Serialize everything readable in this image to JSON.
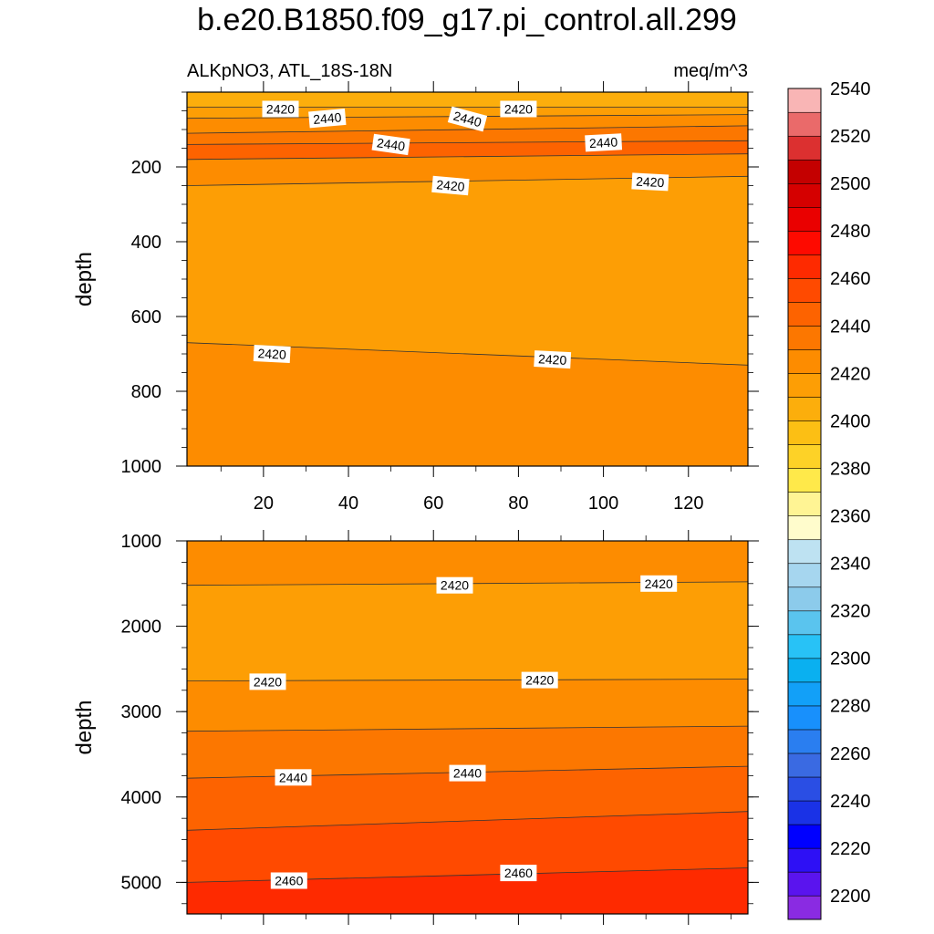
{
  "chart_data": {
    "type": "heatmap",
    "title": "b.e20.B1850.f09_g17.pi_control.all.299",
    "subtitle_left": "ALKpNO3, ATL_18S-18N",
    "subtitle_right": "meq/m^3",
    "ylabel": "depth",
    "x_ticks": [
      20,
      40,
      60,
      80,
      100,
      120
    ],
    "xlim": [
      2,
      134
    ],
    "panels": [
      {
        "name": "upper",
        "ylim": [
          0,
          1000
        ],
        "y_ticks": [
          200,
          400,
          600,
          800,
          1000
        ],
        "bands": [
          {
            "y0": [
              0,
              0
            ],
            "y1": [
              40,
              40
            ],
            "value": 2405
          },
          {
            "y0": [
              40,
              40
            ],
            "y1": [
              70,
              60
            ],
            "value": 2415
          },
          {
            "y0": [
              70,
              60
            ],
            "y1": [
              110,
              90
            ],
            "value": 2425
          },
          {
            "y0": [
              110,
              90
            ],
            "y1": [
              140,
              130
            ],
            "value": 2435
          },
          {
            "y0": [
              140,
              130
            ],
            "y1": [
              180,
              165
            ],
            "value": 2445
          },
          {
            "y0": [
              180,
              165
            ],
            "y1": [
              250,
              225
            ],
            "value": 2425
          },
          {
            "y0": [
              250,
              225
            ],
            "y1": [
              670,
              730
            ],
            "value": 2415
          },
          {
            "y0": [
              670,
              730
            ],
            "y1": [
              1000,
              1000
            ],
            "value": 2425
          }
        ],
        "contour_labels": [
          {
            "x": 24,
            "y": 45,
            "text": "2420",
            "angle": 0
          },
          {
            "x": 35,
            "y": 70,
            "text": "2440",
            "angle": -5
          },
          {
            "x": 68,
            "y": 72,
            "text": "2440",
            "angle": 15
          },
          {
            "x": 80,
            "y": 45,
            "text": "2420",
            "angle": 0
          },
          {
            "x": 50,
            "y": 140,
            "text": "2440",
            "angle": 8
          },
          {
            "x": 100,
            "y": 135,
            "text": "2440",
            "angle": -3
          },
          {
            "x": 64,
            "y": 250,
            "text": "2420",
            "angle": 5
          },
          {
            "x": 111,
            "y": 240,
            "text": "2420",
            "angle": 3
          },
          {
            "x": 22,
            "y": 700,
            "text": "2420",
            "angle": 3
          },
          {
            "x": 88,
            "y": 715,
            "text": "2420",
            "angle": 3
          }
        ]
      },
      {
        "name": "lower",
        "ylim": [
          1000,
          5370
        ],
        "y_ticks": [
          1000,
          2000,
          3000,
          4000,
          5000
        ],
        "bands": [
          {
            "y0": [
              1000,
              1000
            ],
            "y1": [
              1520,
              1480
            ],
            "value": 2425
          },
          {
            "y0": [
              1520,
              1480
            ],
            "y1": [
              2640,
              2620
            ],
            "value": 2415
          },
          {
            "y0": [
              2640,
              2620
            ],
            "y1": [
              3230,
              3170
            ],
            "value": 2425
          },
          {
            "y0": [
              3230,
              3170
            ],
            "y1": [
              3780,
              3640
            ],
            "value": 2435
          },
          {
            "y0": [
              3780,
              3640
            ],
            "y1": [
              4390,
              4170
            ],
            "value": 2445
          },
          {
            "y0": [
              4390,
              4170
            ],
            "y1": [
              5000,
              4830
            ],
            "value": 2455
          },
          {
            "y0": [
              5000,
              4830
            ],
            "y1": [
              5370,
              5370
            ],
            "value": 2465
          }
        ],
        "contour_labels": [
          {
            "x": 65,
            "y": 1520,
            "text": "2420",
            "angle": 0
          },
          {
            "x": 113,
            "y": 1500,
            "text": "2420",
            "angle": 0
          },
          {
            "x": 21,
            "y": 2650,
            "text": "2420",
            "angle": 0
          },
          {
            "x": 85,
            "y": 2630,
            "text": "2420",
            "angle": 0
          },
          {
            "x": 27,
            "y": 3770,
            "text": "2440",
            "angle": 0
          },
          {
            "x": 68,
            "y": 3720,
            "text": "2440",
            "angle": 0
          },
          {
            "x": 26,
            "y": 4980,
            "text": "2460",
            "angle": 0
          },
          {
            "x": 80,
            "y": 4890,
            "text": "2460",
            "angle": 0
          }
        ]
      }
    ],
    "colorbar": {
      "levels_min": 2190,
      "levels_step": 10,
      "tick_labels": [
        2200,
        2220,
        2240,
        2260,
        2280,
        2300,
        2320,
        2340,
        2360,
        2380,
        2400,
        2420,
        2440,
        2460,
        2480,
        2500,
        2520,
        2540
      ],
      "colors": [
        "#8a2be2",
        "#5a14ee",
        "#2e10f5",
        "#0000ff",
        "#1a32e6",
        "#2a4ee4",
        "#3a6ae2",
        "#2a7ef0",
        "#1890fc",
        "#12a0f8",
        "#0ab0f0",
        "#28c2f6",
        "#5ac4ee",
        "#8ccbeb",
        "#a6d6ef",
        "#bee2f2",
        "#fffccc",
        "#fff494",
        "#ffe94a",
        "#fdd227",
        "#fcbf14",
        "#fcae0c",
        "#fd9e05",
        "#fd8c00",
        "#fc7700",
        "#fd6300",
        "#ff4a00",
        "#fe2a00",
        "#fe0a00",
        "#ea0000",
        "#d50000",
        "#c40000",
        "#dc3030",
        "#ea6a6a",
        "#f9b5b5"
      ]
    }
  }
}
